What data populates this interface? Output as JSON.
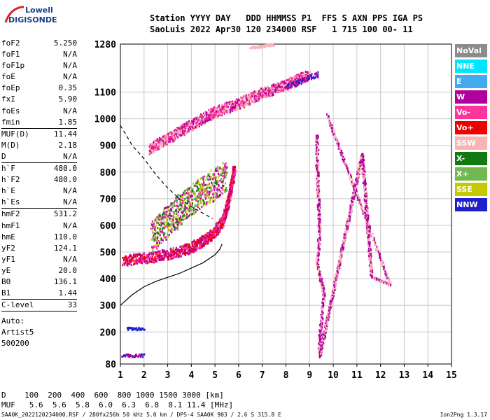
{
  "logo": {
    "line1": "Lowell",
    "line2": "DIGISONDE"
  },
  "header": {
    "row1": "Station YYYY DAY   DDD HHMMSS P1  FFS S AXN PPS IGA PS",
    "row2": "SaoLuis 2022 Apr30 120 234000 RSF   1 715 100 00- 11"
  },
  "params": [
    {
      "label": "foF2",
      "value": "5.250"
    },
    {
      "label": "foF1",
      "value": "N/A"
    },
    {
      "label": "foF1p",
      "value": "N/A"
    },
    {
      "label": "foE",
      "value": "N/A"
    },
    {
      "label": "foEp",
      "value": "0.35"
    },
    {
      "label": "fxI",
      "value": "5.90"
    },
    {
      "label": "foEs",
      "value": "N/A"
    },
    {
      "label": "fmin",
      "value": "1.85",
      "sep": true
    },
    {
      "label": "MUF(D)",
      "value": "11.44"
    },
    {
      "label": "M(D)",
      "value": "2.18"
    },
    {
      "label": "D",
      "value": "N/A",
      "sep": true
    },
    {
      "label": "h`F",
      "value": "480.0"
    },
    {
      "label": "h`F2",
      "value": "480.0"
    },
    {
      "label": "h`E",
      "value": "N/A"
    },
    {
      "label": "h`Es",
      "value": "N/A",
      "sep": true
    },
    {
      "label": "hmF2",
      "value": "531.2"
    },
    {
      "label": "hmF1",
      "value": "N/A"
    },
    {
      "label": "hmE",
      "value": "110.0"
    },
    {
      "label": "yF2",
      "value": "124.1"
    },
    {
      "label": "yF1",
      "value": "N/A"
    },
    {
      "label": "yE",
      "value": "20.0"
    },
    {
      "label": "B0",
      "value": "136.1"
    },
    {
      "label": "B1",
      "value": "1.44",
      "sep": true
    },
    {
      "label": "C-level",
      "value": "33",
      "sep": true
    }
  ],
  "autoscaling": [
    "Auto:",
    "Artist5",
    "500200"
  ],
  "legend": [
    {
      "label": "NoVal",
      "color": "#8c8c8c"
    },
    {
      "label": "NNE",
      "color": "#00e5ff"
    },
    {
      "label": "E",
      "color": "#44aaee"
    },
    {
      "label": "W",
      "color": "#b0009e"
    },
    {
      "label": "Vo-",
      "color": "#ff3399"
    },
    {
      "label": "Vo+",
      "color": "#ee0000"
    },
    {
      "label": "SSW",
      "color": "#f8b4b4"
    },
    {
      "label": "X-",
      "color": "#0f7a0f"
    },
    {
      "label": "X+",
      "color": "#70b850"
    },
    {
      "label": "SSE",
      "color": "#c8c800"
    },
    {
      "label": "NNW",
      "color": "#2020c8"
    }
  ],
  "muf_table": {
    "row1": "D    100  200  400  600  800 1000 1500 3000 [km]",
    "row2": "MUF   5.6  5.6  5.8  6.0  6.3  6.8  8.1 11.4 [MHz]"
  },
  "footer": {
    "left": "SAA0K_2022120234000.RSF / 280fx256h 50 kHz 5.0 km / DPS-4 SAA0K 903 / 2.6 S 315.8 E",
    "right": "Ion2Png 1.3.17"
  },
  "chart_data": {
    "type": "scatter",
    "xlim": [
      1,
      15
    ],
    "ylim": [
      80,
      1280
    ],
    "x_ticks": [
      1,
      2,
      3,
      4,
      5,
      6,
      7,
      8,
      9,
      10,
      11,
      12,
      13,
      14,
      15
    ],
    "y_ticks": [
      80,
      200,
      300,
      400,
      500,
      600,
      700,
      800,
      900,
      1000,
      1100,
      1280
    ],
    "grid": true,
    "echo_traces": [
      {
        "name": "F2 O-trace",
        "points": [
          [
            1.1,
            470
          ],
          [
            1.5,
            475
          ],
          [
            2,
            480
          ],
          [
            2.5,
            485
          ],
          [
            3,
            495
          ],
          [
            3.5,
            505
          ],
          [
            4,
            520
          ],
          [
            4.5,
            545
          ],
          [
            5,
            580
          ],
          [
            5.3,
            620
          ],
          [
            5.5,
            680
          ],
          [
            5.7,
            760
          ],
          [
            5.8,
            820
          ]
        ],
        "spread": 20,
        "colors": [
          "#b0009e",
          "#ff3399",
          "#ee0000"
        ]
      },
      {
        "name": "F2 spread",
        "points": [
          [
            2.3,
            560
          ],
          [
            3,
            620
          ],
          [
            3.5,
            660
          ],
          [
            4,
            700
          ],
          [
            4.5,
            730
          ],
          [
            5,
            760
          ],
          [
            5.5,
            790
          ]
        ],
        "spread": 60,
        "colors": [
          "#b0009e",
          "#ff3399",
          "#0f7a0f",
          "#c8c800",
          "#70b850"
        ]
      },
      {
        "name": "F2 2nd hop",
        "points": [
          [
            2.2,
            890
          ],
          [
            3,
            930
          ],
          [
            4,
            980
          ],
          [
            5,
            1030
          ],
          [
            6,
            1060
          ],
          [
            7,
            1100
          ],
          [
            8,
            1130
          ],
          [
            9,
            1170
          ]
        ],
        "spread": 20,
        "colors": [
          "#f8b4b4",
          "#b0009e",
          "#ff3399"
        ]
      },
      {
        "name": "F2 3rd hop",
        "points": [
          [
            6.5,
            1270
          ],
          [
            7,
            1275
          ],
          [
            7.5,
            1280
          ]
        ],
        "spread": 5,
        "colors": [
          "#f8b4b4"
        ]
      },
      {
        "name": "low echoes",
        "points": [
          [
            1.1,
            115
          ],
          [
            1.5,
            115
          ],
          [
            2,
            115
          ]
        ],
        "spread": 5,
        "colors": [
          "#2020c8",
          "#b0009e"
        ]
      },
      {
        "name": "near 215 km",
        "points": [
          [
            1.3,
            215
          ],
          [
            1.6,
            215
          ],
          [
            2,
            215
          ]
        ],
        "spread": 5,
        "colors": [
          "#2020c8"
        ]
      },
      {
        "name": "far 2nd hop",
        "points": [
          [
            8,
            1125
          ],
          [
            8.5,
            1140
          ],
          [
            9,
            1160
          ],
          [
            9.4,
            1170
          ]
        ],
        "spread": 10,
        "colors": [
          "#2020c8",
          "#b0009e"
        ]
      },
      {
        "name": "isolated",
        "points": [
          [
            9.3,
            940
          ],
          [
            9.3,
            820
          ],
          [
            9.4,
            580
          ],
          [
            9.3,
            460
          ],
          [
            9.5,
            380
          ],
          [
            9.6,
            340
          ],
          [
            9.5,
            280
          ],
          [
            9.4,
            170
          ],
          [
            9.4,
            110
          ],
          [
            11.2,
            870
          ],
          [
            11.6,
            410
          ],
          [
            12.4,
            380
          ],
          [
            9.7,
            1020
          ]
        ],
        "spread": 2,
        "colors": [
          "#b0009e",
          "#f8b4b4"
        ]
      }
    ],
    "profile_curve": [
      [
        1,
        300
      ],
      [
        1.5,
        340
      ],
      [
        2,
        370
      ],
      [
        2.5,
        390
      ],
      [
        3,
        405
      ],
      [
        3.5,
        420
      ],
      [
        4,
        440
      ],
      [
        4.5,
        460
      ],
      [
        5,
        490
      ],
      [
        5.2,
        510
      ],
      [
        5.3,
        530
      ]
    ],
    "dashed_curve": [
      [
        1,
        975
      ],
      [
        1.5,
        900
      ],
      [
        2,
        850
      ],
      [
        2.5,
        790
      ],
      [
        3,
        740
      ],
      [
        3.5,
        700
      ],
      [
        4,
        670
      ],
      [
        4.5,
        645
      ],
      [
        4.9,
        625
      ]
    ]
  }
}
